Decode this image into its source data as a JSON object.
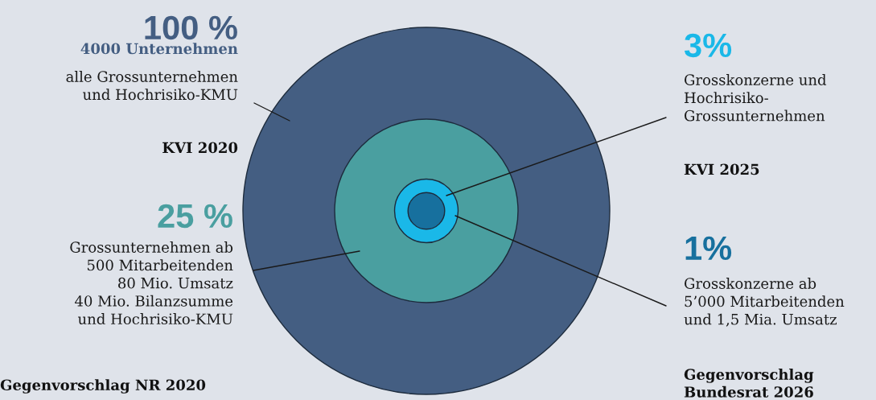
{
  "chart_data": {
    "type": "other",
    "categories": [
      "alle Grossunternehmen\nund Hochrisiko-KMU",
      "Grossunternehmen ab\n500 Mitarbeitenden\n80 Mio. Umsatz\n40 Mio. Bilanzsumme\nund Hochrisiko-KMU",
      "Grosskonzerne und\nHochrisiko-\nGrossunternehmen",
      "Grosskonzerne ab\n5’000 Mitarbeitenden\nund 1,5 Mia. Umsatz"
    ],
    "values": [
      100,
      25,
      3,
      1
    ],
    "colors": [
      "#445e82",
      "#4a9fa0",
      "#1ab8e8",
      "#17709e"
    ],
    "value_labels": [
      "100 %",
      "25 %",
      "3%",
      "1%"
    ],
    "annotations": [
      "4000 Unternehmen",
      "KVI 2020",
      "Gegenvorschlag NR 2020",
      "KVI 2025",
      "Gegenvorschlag\nBundesrat 2026"
    ]
  }
}
